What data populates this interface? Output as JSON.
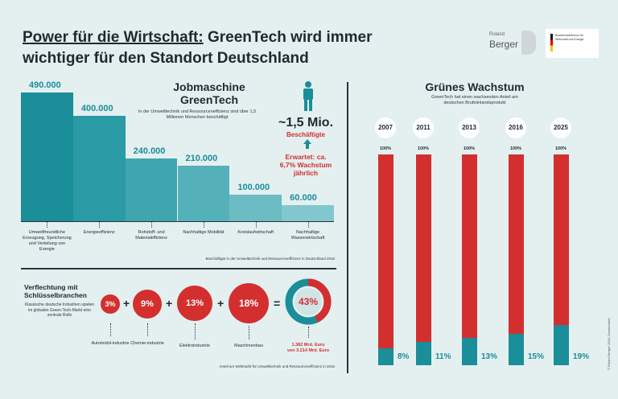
{
  "header": {
    "title_part1": "Power für die Wirtschaft:",
    "title_part2": " GreenTech wird immer",
    "title_line2": "wichtiger für den Standort Deutschland",
    "logo_rb_small": "Roland",
    "logo_rb_name": "Berger",
    "logo_bmwi_text": "Bundesministerium für Wirtschaft und Energie"
  },
  "jobs": {
    "title_line1": "Jobmaschine",
    "title_line2": "GreenTech",
    "subtitle": "In der Umwelttechnik und Ressourceneffizienz sind über 1,5 Millionen Menschen beschäftigt",
    "total_value": "~1,5 Mio.",
    "total_label": "Beschäftigte",
    "growth_note": "Erwartet: ca. 6,7% Wachstum jährlich",
    "source": "Beschäftigte in der Umwelttechnik und Ressourceneffizienz in Deutschland 2016"
  },
  "growth": {
    "title": "Grünes Wachstum",
    "subtitle": "GreenTech hat einen wachsenden Anteil am deutschen Bruttoinlandsprodukt",
    "hundred_label": "100%"
  },
  "links": {
    "title": "Verflechtung mit Schlüsselbranchen",
    "desc": "Klassische deutsche Industrien spielen im globalen Green-Tech-Markt eine zentrale Rolle",
    "plus": "+",
    "equals": "=",
    "total_pct": "43%",
    "total_note1": "1.382 Mrd. Euro",
    "total_note2": "von 3.214 Mrd. Euro",
    "source": "Anteil am Weltmarkt für Umwelttechnik und Ressourceneffizienz in 2016",
    "items": [
      {
        "pct": "3%",
        "label": "Automobil-industrie"
      },
      {
        "pct": "9%",
        "label": "Chemie-industrie"
      },
      {
        "pct": "13%",
        "label": "Elektroindustrie"
      },
      {
        "pct": "18%",
        "label": "Maschinenbau"
      }
    ]
  },
  "side_credit": "© Roland Berger 2018, Deutschland",
  "chart_data": [
    {
      "type": "bar",
      "title": "Jobmaschine GreenTech",
      "categories": [
        "Umweltfreundliche Erzeugung, Speicherung und Verteilung von Energie",
        "Energieeffizienz",
        "Rohstoff- und Materialeffizienz",
        "Nachhaltige Mobilität",
        "Kreislaufwirtschaft",
        "Nachhaltige Wasserwirtschaft"
      ],
      "values": [
        490000,
        400000,
        240000,
        210000,
        100000,
        60000
      ],
      "value_labels": [
        "490.000",
        "400.000",
        "240.000",
        "210.000",
        "100.000",
        "60.000"
      ],
      "ylim": [
        0,
        490000
      ],
      "colors": [
        "#1a8e99",
        "#2a9aa4",
        "#3fa6af",
        "#55b1b9",
        "#6bbcc3",
        "#82c7cd"
      ]
    },
    {
      "type": "bar",
      "title": "Grünes Wachstum",
      "categories": [
        "2007",
        "2011",
        "2013",
        "2016",
        "2025"
      ],
      "values": [
        8,
        11,
        13,
        15,
        19
      ],
      "value_labels": [
        "8%",
        "11%",
        "13%",
        "15%",
        "19%"
      ],
      "ylim": [
        0,
        100
      ],
      "colors": {
        "share": "#1a8e99",
        "rest": "#d32f2f"
      }
    }
  ]
}
